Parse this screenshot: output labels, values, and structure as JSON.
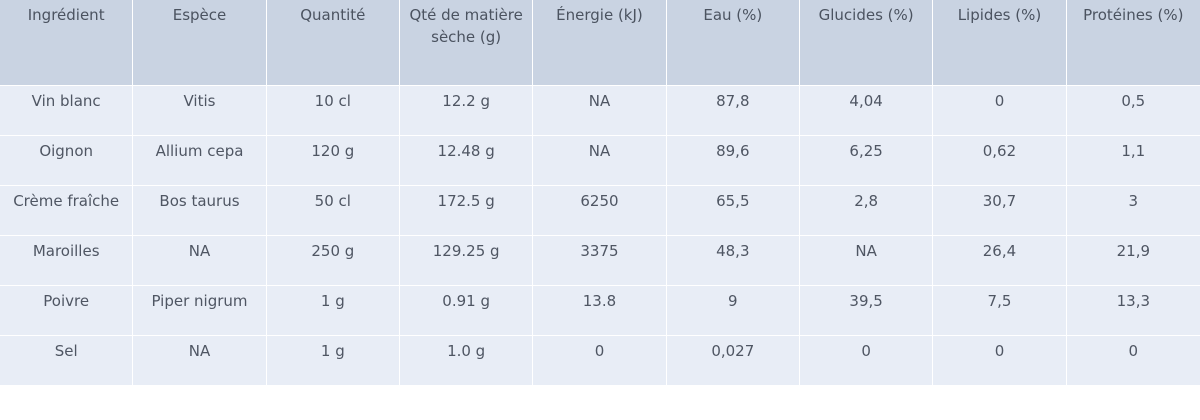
{
  "chart_data": {
    "type": "table",
    "columns": [
      "Ingrédient",
      "Espèce",
      "Quantité",
      "Qté de matière sèche (g)",
      "Énergie (kJ)",
      "Eau (%)",
      "Glucides (%)",
      "Lipides (%)",
      "Protéines (%)"
    ],
    "rows": [
      [
        "Vin blanc",
        "Vitis",
        "10 cl",
        "12.2 g",
        "NA",
        "87,8",
        "4,04",
        "0",
        "0,5"
      ],
      [
        "Oignon",
        "Allium cepa",
        "120 g",
        "12.48 g",
        "NA",
        "89,6",
        "6,25",
        "0,62",
        "1,1"
      ],
      [
        "Crème fraîche",
        "Bos taurus",
        "50 cl",
        "172.5 g",
        "6250",
        "65,5",
        "2,8",
        "30,7",
        "3"
      ],
      [
        "Maroilles",
        "NA",
        "250 g",
        "129.25 g",
        "3375",
        "48,3",
        "NA",
        "26,4",
        "21,9"
      ],
      [
        "Poivre",
        "Piper nigrum",
        "1 g",
        "0.91 g",
        "13.8",
        "9",
        "39,5",
        "7,5",
        "13,3"
      ],
      [
        "Sel",
        "NA",
        "1 g",
        "1.0 g",
        "0",
        "0,027",
        "0",
        "0",
        "0"
      ]
    ]
  }
}
